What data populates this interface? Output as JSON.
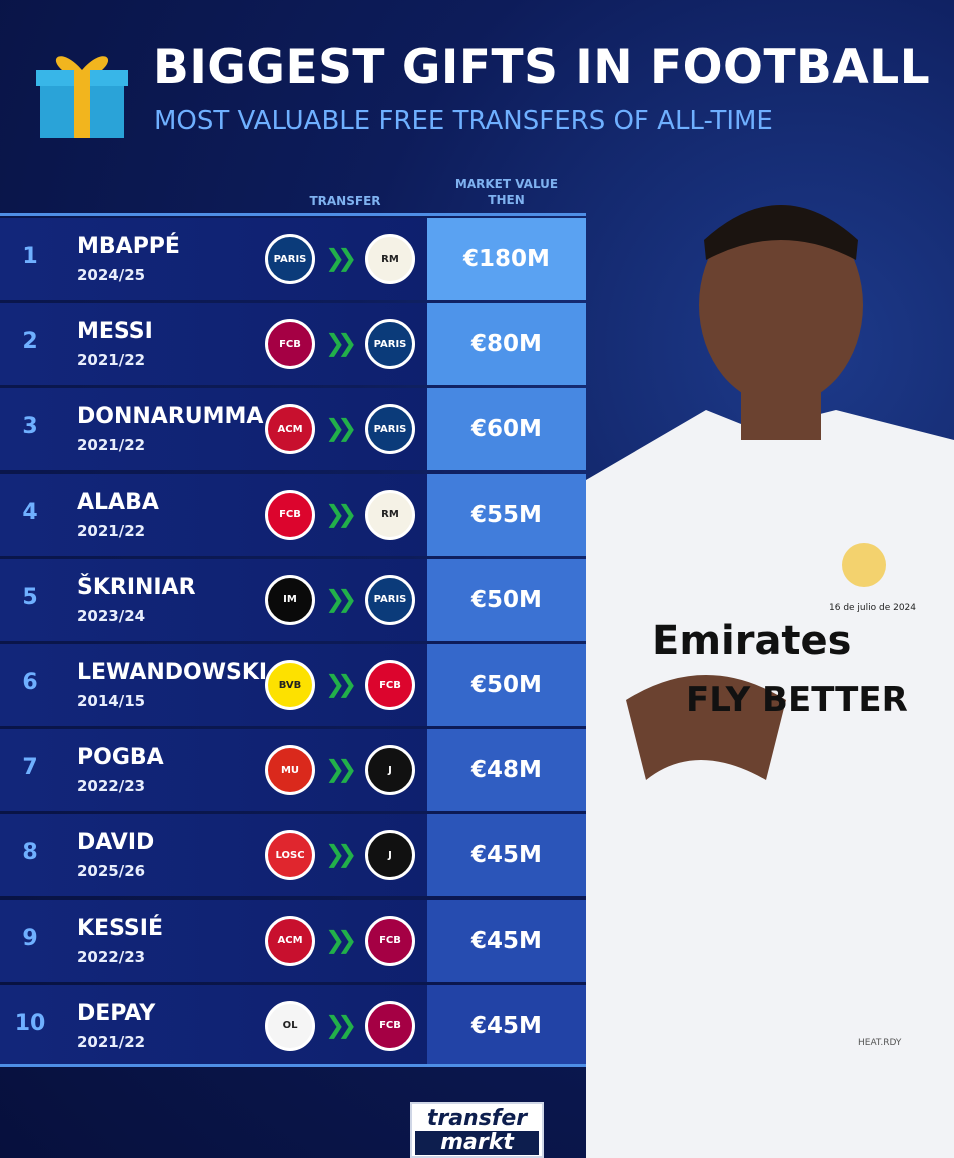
{
  "header": {
    "title": "BIGGEST GIFTS IN FOOTBALL",
    "subtitle": "MOST VALUABLE FREE TRANSFERS OF ALL-TIME",
    "gift_icon": "gift-box-icon"
  },
  "columns": {
    "transfer": "TRANSFER",
    "market_value_line1": "MARKET VALUE",
    "market_value_line2": "THEN"
  },
  "rows": [
    {
      "rank": "1",
      "name": "MBAPPÉ",
      "season": "2024/25",
      "from": "PSG",
      "to": "Real Madrid",
      "value": "€180M"
    },
    {
      "rank": "2",
      "name": "MESSI",
      "season": "2021/22",
      "from": "FC Barcelona",
      "to": "PSG",
      "value": "€80M"
    },
    {
      "rank": "3",
      "name": "DONNARUMMA",
      "season": "2021/22",
      "from": "AC Milan",
      "to": "PSG",
      "value": "€60M"
    },
    {
      "rank": "4",
      "name": "ALABA",
      "season": "2021/22",
      "from": "Bayern München",
      "to": "Real Madrid",
      "value": "€55M"
    },
    {
      "rank": "5",
      "name": "ŠKRINIAR",
      "season": "2023/24",
      "from": "Inter",
      "to": "PSG",
      "value": "€50M"
    },
    {
      "rank": "6",
      "name": "LEWANDOWSKI",
      "season": "2014/15",
      "from": "Borussia Dortmund",
      "to": "Bayern München",
      "value": "€50M"
    },
    {
      "rank": "7",
      "name": "POGBA",
      "season": "2022/23",
      "from": "Manchester United",
      "to": "Juventus",
      "value": "€48M"
    },
    {
      "rank": "8",
      "name": "DAVID",
      "season": "2025/26",
      "from": "LOSC Lille",
      "to": "Juventus",
      "value": "€45M"
    },
    {
      "rank": "9",
      "name": "KESSIÉ",
      "season": "2022/23",
      "from": "AC Milan",
      "to": "FC Barcelona",
      "value": "€45M"
    },
    {
      "rank": "10",
      "name": "DEPAY",
      "season": "2021/22",
      "from": "Olympique Lyonnais",
      "to": "FC Barcelona",
      "value": "€45M"
    }
  ],
  "value_colors": [
    "#5aa2f2",
    "#4e94ea",
    "#4788e2",
    "#417ddb",
    "#3b72d3",
    "#3568cb",
    "#305ec2",
    "#2b55b9",
    "#264cb0",
    "#2243a6"
  ],
  "photo": {
    "shirt_sponsor_1": "Emirates",
    "shirt_sponsor_2": "FLY BETTER",
    "shirt_date": "16 de julio de 2024",
    "kit_label": "HEAT.RDY"
  },
  "brand": {
    "line1": "transfer",
    "line2": "markt"
  }
}
